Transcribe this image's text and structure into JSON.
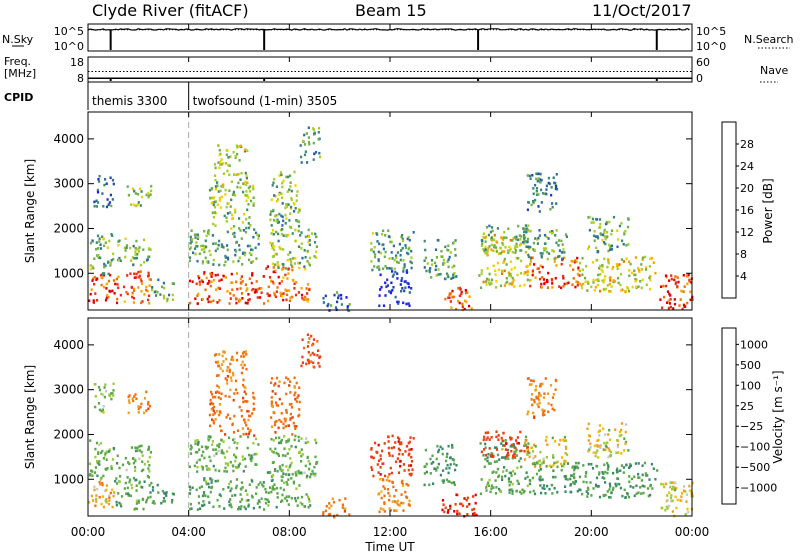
{
  "header": {
    "station": "Clyde River (fitACF)",
    "beam": "Beam 15",
    "date": "11/Oct/2017"
  },
  "sky_panel": {
    "left_label": "N.Sky",
    "right_label": "N.Search",
    "left_ticks": [
      "10^5",
      "10^0"
    ],
    "right_ticks": [
      "10^5",
      "10^0"
    ]
  },
  "freq_panel": {
    "left_label_line1": "Freq.",
    "left_label_line2": "[MHz]",
    "left_ticks": [
      "18",
      "8"
    ],
    "right_label": "Nave",
    "right_ticks": [
      "60",
      "0"
    ]
  },
  "cpid": {
    "label": "CPID",
    "modes": [
      {
        "name": "themis 3300",
        "start_hour": 0,
        "end_hour": 4
      },
      {
        "name": "twofsound (1-min) 3505",
        "start_hour": 4,
        "end_hour": 24
      }
    ]
  },
  "power_panel": {
    "ylabel": "Slant Range [km]",
    "yticks": [
      "1000",
      "2000",
      "3000",
      "4000"
    ],
    "colorbar_label": "Power [dB]",
    "colorbar_ticks": [
      "4",
      "8",
      "12",
      "16",
      "20",
      "24",
      "28"
    ],
    "colorbar_colors": [
      "#1a1aff",
      "#2040b0",
      "#2e6fa0",
      "#3c8c6e",
      "#6fb04a",
      "#a8cc2a",
      "#f0d000",
      "#f5a500",
      "#f07000",
      "#e83018",
      "#e00000"
    ]
  },
  "velocity_panel": {
    "ylabel": "Slant Range [km]",
    "yticks": [
      "1000",
      "2000",
      "3000",
      "4000"
    ],
    "colorbar_label": "Velocity [m s⁻¹]",
    "colorbar_ticks": [
      "1000",
      "500",
      "100",
      "25",
      "−25",
      "−100",
      "−500",
      "−1000"
    ],
    "colorbar_colors": [
      "#1a3a9a",
      "#2a6a9a",
      "#3a8a6a",
      "#5aa84a",
      "#9acc3a",
      "#c8c8c8",
      "#f0c000",
      "#f0a020",
      "#f07010",
      "#e84010",
      "#e00000"
    ]
  },
  "xaxis": {
    "label": "Time UT",
    "ticks": [
      "00:00",
      "04:00",
      "08:00",
      "12:00",
      "16:00",
      "20:00",
      "00:00"
    ]
  },
  "chart_data": {
    "type": "heatmap",
    "x_range_hours": [
      0,
      24
    ],
    "y_range_km": [
      180,
      4600
    ],
    "dashed_marker_hour": 4,
    "sky_level": 0.8,
    "search_level": 0.78,
    "freq_level": 0.15,
    "nave_level": 0.42,
    "data_gaps_hours": [
      0.9,
      7.0,
      15.5,
      22.6
    ],
    "echo_regions": [
      {
        "t0": 0.0,
        "t1": 1.0,
        "r0": 350,
        "r1": 1000,
        "power_db": 27,
        "velocity": -30
      },
      {
        "t0": 0.0,
        "t1": 1.0,
        "r0": 1000,
        "r1": 1900,
        "power_db": 14,
        "velocity": 150
      },
      {
        "t0": 1.0,
        "t1": 2.5,
        "r0": 350,
        "r1": 1100,
        "power_db": 25,
        "velocity": 200
      },
      {
        "t0": 1.1,
        "t1": 2.5,
        "r0": 1200,
        "r1": 1800,
        "power_db": 14,
        "velocity": 150
      },
      {
        "t0": 1.5,
        "t1": 2.5,
        "r0": 2500,
        "r1": 3000,
        "power_db": 15,
        "velocity": -150
      },
      {
        "t0": 2.5,
        "t1": 3.4,
        "r0": 400,
        "r1": 900,
        "power_db": 12,
        "velocity": 300
      },
      {
        "t0": 0.2,
        "t1": 1.0,
        "r0": 2500,
        "r1": 3200,
        "power_db": 8,
        "velocity": 100
      },
      {
        "t0": 4.0,
        "t1": 7.0,
        "r0": 350,
        "r1": 1050,
        "power_db": 26,
        "velocity": 200
      },
      {
        "t0": 4.0,
        "t1": 6.8,
        "r0": 1200,
        "r1": 2000,
        "power_db": 12,
        "velocity": 150
      },
      {
        "t0": 4.8,
        "t1": 6.6,
        "r0": 2000,
        "r1": 3000,
        "power_db": 14,
        "velocity": -200
      },
      {
        "t0": 5.0,
        "t1": 6.3,
        "r0": 3000,
        "r1": 3900,
        "power_db": 16,
        "velocity": -150
      },
      {
        "t0": 7.0,
        "t1": 8.8,
        "r0": 400,
        "r1": 1200,
        "power_db": 24,
        "velocity": 180
      },
      {
        "t0": 7.2,
        "t1": 9.1,
        "r0": 1100,
        "r1": 2000,
        "power_db": 14,
        "velocity": 150
      },
      {
        "t0": 7.2,
        "t1": 8.4,
        "r0": 2000,
        "r1": 3300,
        "power_db": 14,
        "velocity": -200
      },
      {
        "t0": 8.4,
        "t1": 9.2,
        "r0": 3500,
        "r1": 4300,
        "power_db": 12,
        "velocity": -300
      },
      {
        "t0": 9.3,
        "t1": 10.4,
        "r0": 180,
        "r1": 600,
        "power_db": 8,
        "velocity": -150
      },
      {
        "t0": 11.2,
        "t1": 12.9,
        "r0": 1100,
        "r1": 2000,
        "power_db": 13,
        "velocity": -400
      },
      {
        "t0": 11.5,
        "t1": 12.8,
        "r0": 300,
        "r1": 1100,
        "power_db": 5,
        "velocity": -120
      },
      {
        "t0": 13.3,
        "t1": 14.6,
        "r0": 900,
        "r1": 1800,
        "power_db": 12,
        "velocity": 250
      },
      {
        "t0": 14.0,
        "t1": 15.4,
        "r0": 200,
        "r1": 700,
        "power_db": 26,
        "velocity": -500
      },
      {
        "t0": 15.5,
        "t1": 17.5,
        "r0": 700,
        "r1": 1900,
        "power_db": 18,
        "velocity": 200
      },
      {
        "t0": 15.6,
        "t1": 17.5,
        "r0": 1500,
        "r1": 2100,
        "power_db": 13,
        "velocity": -400
      },
      {
        "t0": 17.5,
        "t1": 19.5,
        "r0": 700,
        "r1": 1400,
        "power_db": 26,
        "velocity": 250
      },
      {
        "t0": 17.3,
        "t1": 19.0,
        "r0": 1300,
        "r1": 2000,
        "power_db": 12,
        "velocity": 20
      },
      {
        "t0": 19.5,
        "t1": 22.6,
        "r0": 600,
        "r1": 1400,
        "power_db": 18,
        "velocity": 250
      },
      {
        "t0": 19.8,
        "t1": 21.5,
        "r0": 1500,
        "r1": 2300,
        "power_db": 13,
        "velocity": 20
      },
      {
        "t0": 17.4,
        "t1": 18.6,
        "r0": 2400,
        "r1": 3300,
        "power_db": 10,
        "velocity": -150
      },
      {
        "t0": 22.7,
        "t1": 24.0,
        "r0": 200,
        "r1": 1000,
        "power_db": 27,
        "velocity": 20
      }
    ]
  }
}
